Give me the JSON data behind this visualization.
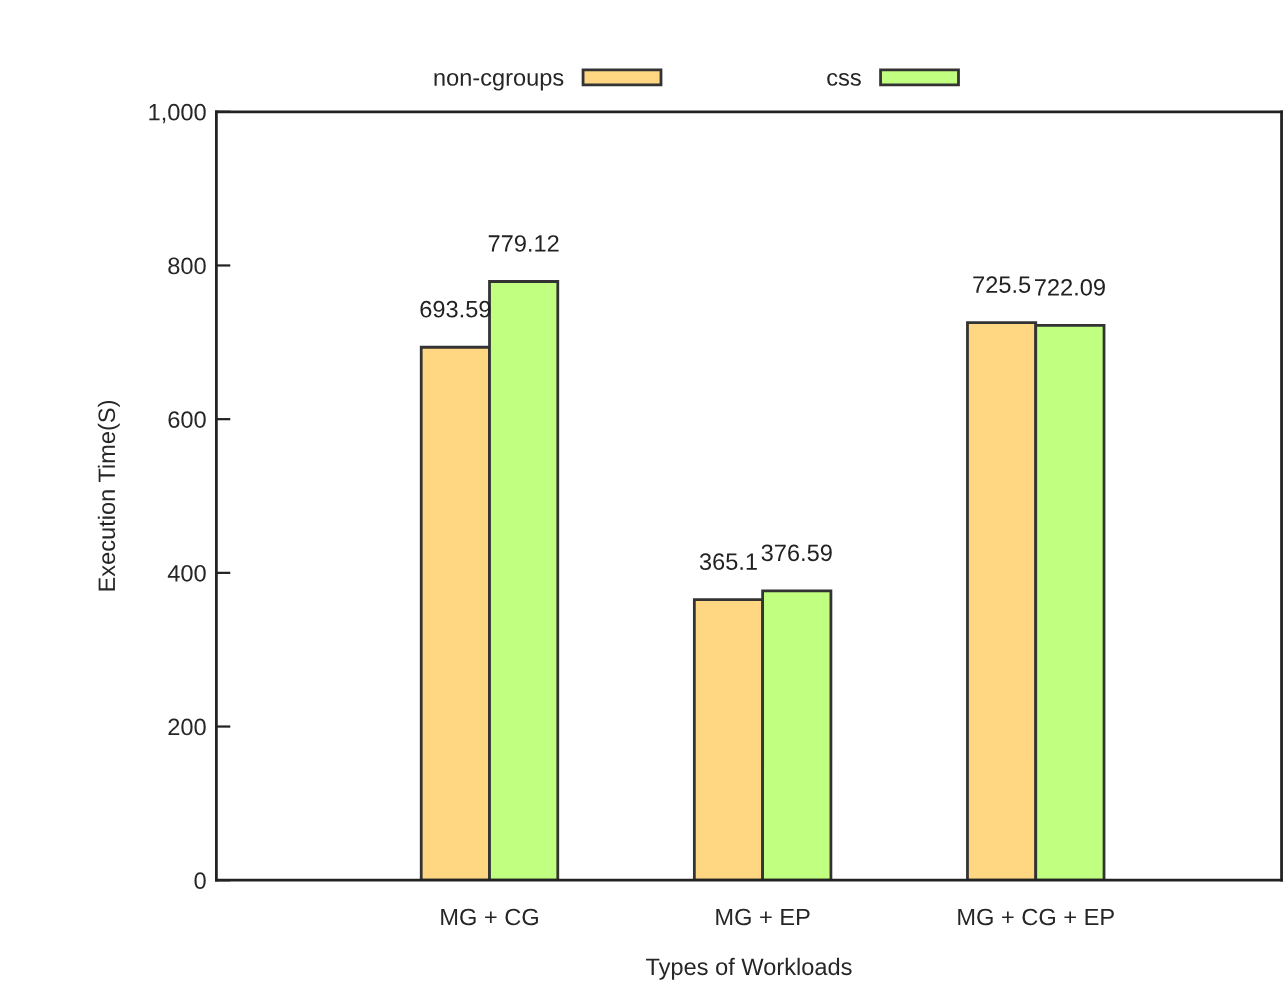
{
  "chart_data": {
    "type": "bar",
    "xlabel": "Types of Workloads",
    "ylabel": "Execution Time(S)",
    "categories": [
      "MG + CG",
      "MG + EP",
      "MG + CG + EP"
    ],
    "series": [
      {
        "name": "non-cgroups",
        "color": "#ffd783",
        "values": [
          693.59,
          365.1,
          725.5
        ]
      },
      {
        "name": "css",
        "color": "#c0ff80",
        "values": [
          779.12,
          376.59,
          722.09
        ]
      }
    ],
    "ylim": [
      0,
      1000
    ],
    "yticks": [
      0,
      200,
      400,
      600,
      800,
      {
        "value": 1000,
        "label": "1,000"
      }
    ],
    "data_labels": true,
    "grid": false,
    "legend": "top"
  }
}
